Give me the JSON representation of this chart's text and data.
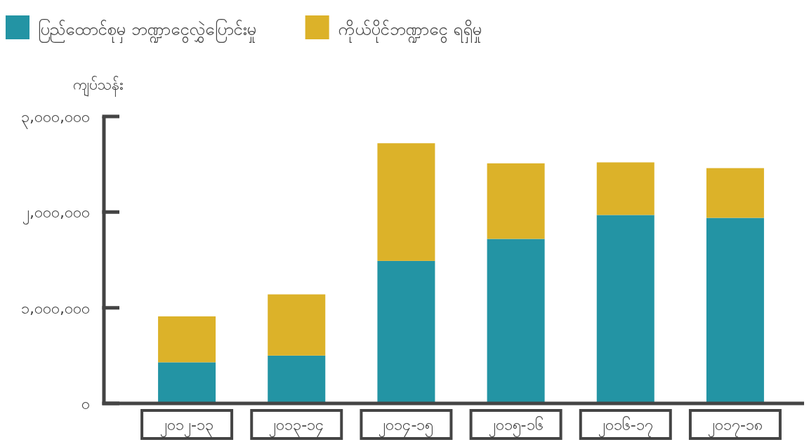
{
  "chart_data": {
    "type": "bar",
    "stacked": true,
    "legend": "top left",
    "grid": false,
    "ylabel": "ကျပ်သန်း",
    "categories": [
      "၂၀၁၂-၁၃",
      "၂၀၁၃-၁၄",
      "၂၀၁၄-၁၅",
      "၂၀၁၅-၁၆",
      "၂၀၁၆-၁၇",
      "၂၀၁၇-၁၈"
    ],
    "series": [
      {
        "name": "ပြည်ထောင်စုမှ ဘဏ္ဍာငွေလွှဲပြောင်းမှု",
        "color": "#2394a4",
        "values": [
          430000,
          500000,
          1490000,
          1720000,
          1970000,
          1940000
        ]
      },
      {
        "name": "ကိုယ်ပိုင်ဘဏ္ဍာငွေ ရရှိမှု",
        "color": "#dcb229",
        "values": [
          480000,
          640000,
          1230000,
          790000,
          550000,
          520000
        ]
      }
    ],
    "ylim": [
      0,
      3000000
    ],
    "yticks": [
      {
        "value": 0,
        "label": "၀"
      },
      {
        "value": 1000000,
        "label": "၁,၀၀၀,၀၀၀"
      },
      {
        "value": 2000000,
        "label": "၂,၀၀၀,၀၀၀"
      },
      {
        "value": 3000000,
        "label": "၃,၀၀၀,၀၀၀"
      }
    ]
  }
}
